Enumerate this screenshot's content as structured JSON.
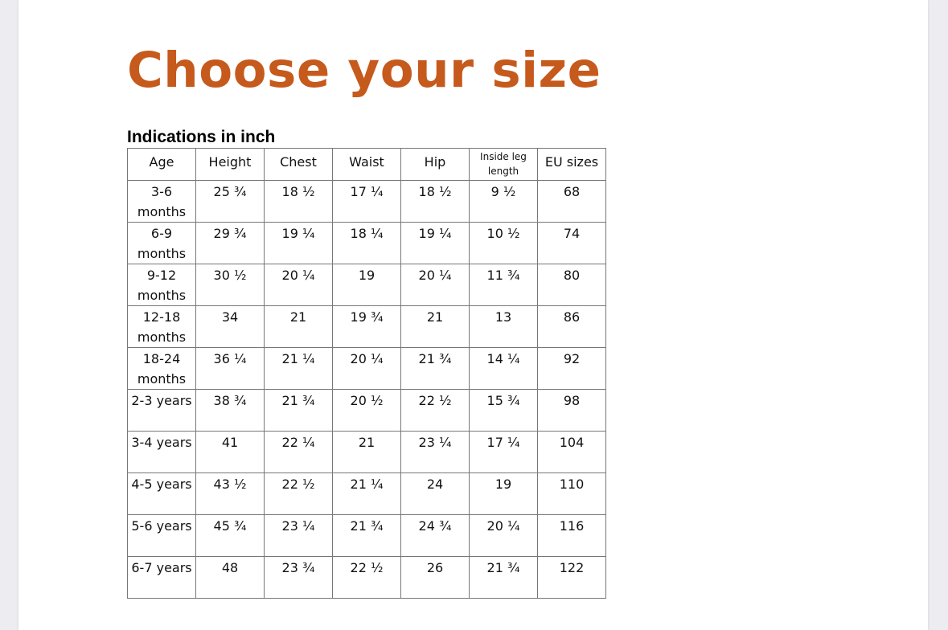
{
  "title": "Choose your size",
  "subtitle": "Indications in inch",
  "colors": {
    "title": "#c55a1c"
  },
  "table": {
    "headers": [
      "Age",
      "Height",
      "Chest",
      "Waist",
      "Hip",
      "Inside leg length",
      "EU sizes"
    ],
    "rows": [
      [
        "3-6 months",
        "25 ¾",
        "18 ½",
        "17 ¼",
        "18 ½",
        "9 ½",
        "68"
      ],
      [
        "6-9 months",
        "29 ¾",
        "19 ¼",
        "18 ¼",
        "19 ¼",
        "10 ½",
        "74"
      ],
      [
        "9-12 months",
        "30 ½",
        "20 ¼",
        "19",
        "20 ¼",
        "11 ¾",
        "80"
      ],
      [
        "12-18 months",
        "34",
        "21",
        "19 ¾",
        "21",
        "13",
        "86"
      ],
      [
        "18-24 months",
        "36 ¼",
        "21 ¼",
        "20 ¼",
        "21 ¾",
        "14 ¼",
        "92"
      ],
      [
        "2-3 years",
        "38 ¾",
        "21 ¾",
        "20 ½",
        "22 ½",
        "15 ¾",
        "98"
      ],
      [
        "3-4 years",
        "41",
        "22 ¼",
        "21",
        "23 ¼",
        "17 ¼",
        "104"
      ],
      [
        "4-5 years",
        "43 ½",
        "22 ½",
        "21 ¼",
        "24",
        "19",
        "110"
      ],
      [
        "5-6 years",
        "45 ¾",
        "23 ¼",
        "21 ¾",
        "24 ¾",
        "20 ¼",
        "116"
      ],
      [
        "6-7 years",
        "48",
        "23 ¾",
        "22 ½",
        "26",
        "21 ¾",
        "122"
      ]
    ]
  }
}
